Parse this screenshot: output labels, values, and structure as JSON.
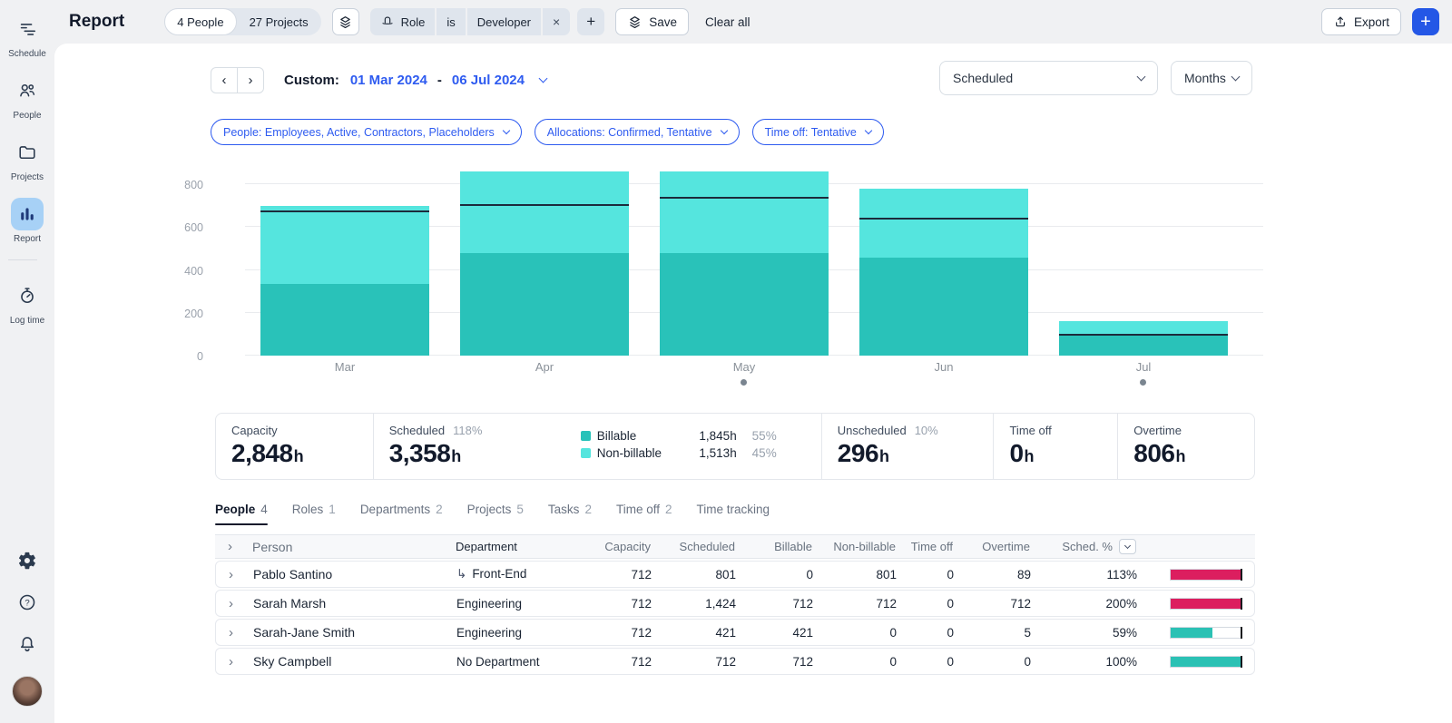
{
  "colors": {
    "accent_blue": "#2E5BF0",
    "button_blue": "#2457E6",
    "billable_teal": "#29C2B9",
    "nonbillable_teal": "#55E5DE",
    "capacity_line": "#1C2B3C",
    "over_pink": "#DC1E5F",
    "under_teal": "#2BC1B4"
  },
  "sidebar": {
    "items": [
      {
        "label": "Schedule",
        "icon": "schedule-icon",
        "active": false
      },
      {
        "label": "People",
        "icon": "people-icon",
        "active": false
      },
      {
        "label": "Projects",
        "icon": "projects-icon",
        "active": false
      },
      {
        "label": "Report",
        "icon": "report-icon",
        "active": true
      },
      {
        "label": "Log time",
        "icon": "logtime-icon",
        "active": false,
        "divider_before": true
      }
    ],
    "bottom": [
      {
        "name": "settings",
        "icon": "settings-icon"
      },
      {
        "name": "help",
        "icon": "help-icon"
      },
      {
        "name": "notifications",
        "icon": "notifications-icon"
      },
      {
        "name": "account",
        "icon": "avatar"
      }
    ]
  },
  "toolbar": {
    "title": "Report",
    "people_chip": "4 People",
    "projects_chip": "27 Projects",
    "filter_field": "Role",
    "filter_operator": "is",
    "filter_value": "Developer",
    "filter_remove": "×",
    "add_filter": "+",
    "save_label": "Save",
    "clear_label": "Clear all",
    "export_label": "Export",
    "new_label": "+"
  },
  "controls": {
    "custom_label": "Custom:",
    "start_date": "01 Mar 2024",
    "date_separator": "-",
    "end_date": "06 Jul 2024",
    "metric_select": "Scheduled",
    "interval_select": "Months",
    "filter_pills": [
      "People: Employees, Active, Contractors, Placeholders",
      "Allocations: Confirmed, Tentative",
      "Time off: Tentative"
    ]
  },
  "chart_data": {
    "type": "bar",
    "stacked": true,
    "categories": [
      "Mar",
      "Apr",
      "May",
      "Jun",
      "Jul"
    ],
    "series": [
      {
        "name": "Billable",
        "color": "#29C2B9",
        "values": [
          336,
          480,
          480,
          457,
          92
        ]
      },
      {
        "name": "Non-billable",
        "color": "#55E5DE",
        "values": [
          364,
          380,
          380,
          321,
          68
        ]
      }
    ],
    "capacity_line": {
      "label": "Capacity",
      "color": "#1C2B3C",
      "values": [
        672,
        704,
        736,
        640,
        96
      ]
    },
    "ylim": [
      0,
      876
    ],
    "yticks": [
      0,
      200,
      400,
      600,
      800
    ],
    "grid": true,
    "dot_markers": [
      "May",
      "Jul"
    ]
  },
  "summary": {
    "cards": [
      {
        "label": "Capacity",
        "percent": "",
        "value": "2,848",
        "unit": "h"
      },
      {
        "label": "Scheduled",
        "percent": "118%",
        "value": "3,358",
        "unit": "h"
      },
      {
        "label": "Unscheduled",
        "percent": "10%",
        "value": "296",
        "unit": "h"
      },
      {
        "label": "Time off",
        "percent": "",
        "value": "0",
        "unit": "h"
      },
      {
        "label": "Overtime",
        "percent": "",
        "value": "806",
        "unit": "h"
      }
    ],
    "legend": [
      {
        "name": "Billable",
        "hours": "1,845h",
        "pct": "55%",
        "color": "#29C2B9"
      },
      {
        "name": "Non-billable",
        "hours": "1,513h",
        "pct": "45%",
        "color": "#55E5DE"
      }
    ]
  },
  "tabs": [
    {
      "label": "People",
      "count": "4",
      "active": true
    },
    {
      "label": "Roles",
      "count": "1",
      "active": false
    },
    {
      "label": "Departments",
      "count": "2",
      "active": false
    },
    {
      "label": "Projects",
      "count": "5",
      "active": false
    },
    {
      "label": "Tasks",
      "count": "2",
      "active": false
    },
    {
      "label": "Time off",
      "count": "2",
      "active": false
    },
    {
      "label": "Time tracking",
      "count": "",
      "active": false
    }
  ],
  "table": {
    "columns": [
      "Person",
      "Department",
      "Capacity",
      "Scheduled",
      "Billable",
      "Non-billable",
      "Time off",
      "Overtime",
      "Sched. %"
    ],
    "rows": [
      {
        "person": "Pablo Santino",
        "department": "Front-End",
        "sub_department": true,
        "capacity": "712",
        "scheduled": "801",
        "billable": "0",
        "non_billable": "801",
        "time_off": "0",
        "overtime": "89",
        "sched_pct": "113%",
        "bar_fill": 1,
        "bar_state": "over"
      },
      {
        "person": "Sarah Marsh",
        "department": "Engineering",
        "sub_department": false,
        "capacity": "712",
        "scheduled": "1,424",
        "billable": "712",
        "non_billable": "712",
        "time_off": "0",
        "overtime": "712",
        "sched_pct": "200%",
        "bar_fill": 1,
        "bar_state": "over"
      },
      {
        "person": "Sarah-Jane Smith",
        "department": "Engineering",
        "sub_department": false,
        "capacity": "712",
        "scheduled": "421",
        "billable": "421",
        "non_billable": "0",
        "time_off": "0",
        "overtime": "5",
        "sched_pct": "59%",
        "bar_fill": 0.59,
        "bar_state": "under"
      },
      {
        "person": "Sky Campbell",
        "department": "No Department",
        "sub_department": false,
        "capacity": "712",
        "scheduled": "712",
        "billable": "712",
        "non_billable": "0",
        "time_off": "0",
        "overtime": "0",
        "sched_pct": "100%",
        "bar_fill": 1,
        "bar_state": "under"
      }
    ]
  }
}
